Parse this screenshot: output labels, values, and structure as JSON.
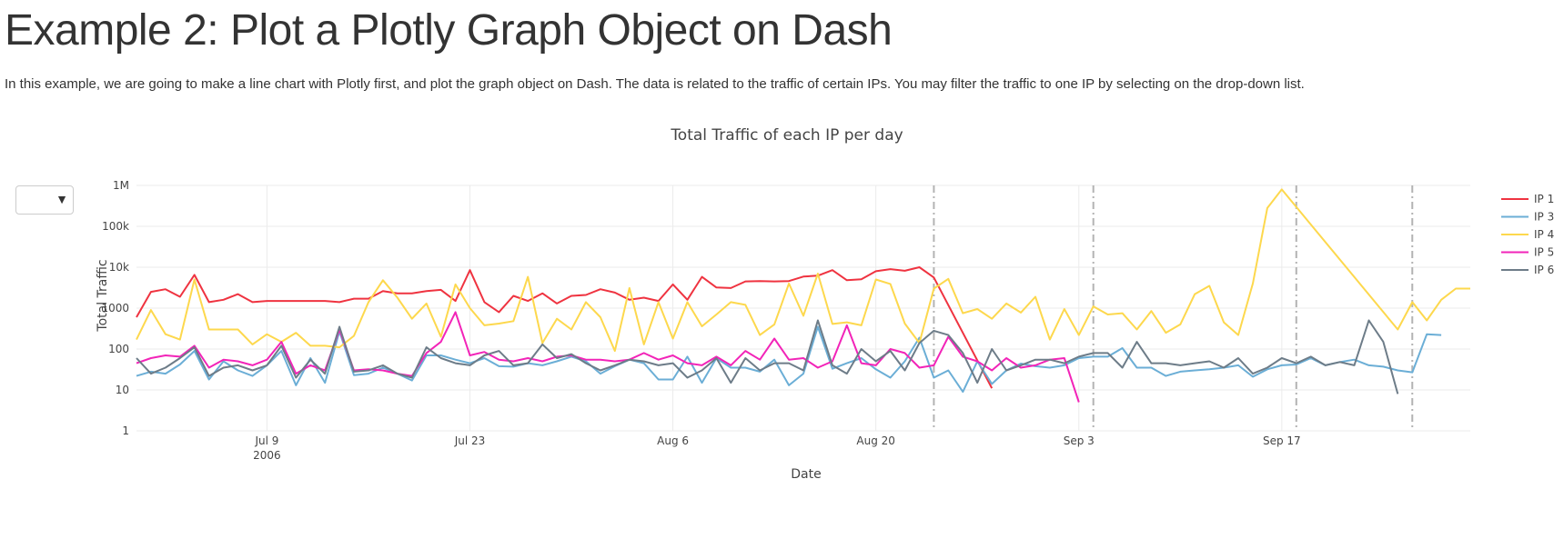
{
  "page": {
    "title": "Example 2: Plot a Plotly Graph Object on Dash",
    "description": "In this example, we are going to make a line chart with Plotly first, and plot the graph object on Dash. The data is related to the traffic of certain IPs. You may filter the traffic to one IP by selecting on the drop-down list."
  },
  "dropdown": {
    "value": "",
    "arrow": "▼"
  },
  "chart_data": {
    "type": "line",
    "title": "Total Traffic of each IP per day",
    "xlabel": "Date",
    "ylabel": "Total Traffic",
    "yscale": "log",
    "ylim": [
      1,
      1000000
    ],
    "xlim": [
      "2006-06-30",
      "2006-09-30"
    ],
    "x_start": "2006-06-30",
    "grid": true,
    "legend_position": "right",
    "x_ticks": [
      {
        "date": "2006-07-09",
        "label": "Jul 9",
        "sub": "2006"
      },
      {
        "date": "2006-07-23",
        "label": "Jul 23",
        "sub": ""
      },
      {
        "date": "2006-08-06",
        "label": "Aug 6",
        "sub": ""
      },
      {
        "date": "2006-08-20",
        "label": "Aug 20",
        "sub": ""
      },
      {
        "date": "2006-09-03",
        "label": "Sep 3",
        "sub": ""
      },
      {
        "date": "2006-09-17",
        "label": "Sep 17",
        "sub": ""
      }
    ],
    "y_ticks": [
      {
        "value": 1,
        "label": "1"
      },
      {
        "value": 10,
        "label": "10"
      },
      {
        "value": 100,
        "label": "100"
      },
      {
        "value": 1000,
        "label": "1000"
      },
      {
        "value": 10000,
        "label": "10k"
      },
      {
        "value": 100000,
        "label": "100k"
      },
      {
        "value": 1000000,
        "label": "1M"
      }
    ],
    "vlines": [
      "2006-08-24",
      "2006-09-04",
      "2006-09-18",
      "2006-09-26"
    ],
    "series": [
      {
        "name": "IP 1",
        "color": "#ef3340",
        "values": [
          600,
          2500,
          2900,
          1900,
          6500,
          1400,
          1600,
          2200,
          1400,
          1500,
          1500,
          1500,
          1500,
          1500,
          1400,
          1700,
          1700,
          2600,
          2300,
          2300,
          2600,
          2800,
          1500,
          8500,
          1400,
          800,
          2000,
          1500,
          2300,
          1300,
          2000,
          2100,
          2900,
          2400,
          1600,
          1800,
          1500,
          3800,
          1600,
          5800,
          3200,
          3100,
          4500,
          4600,
          4500,
          4600,
          5900,
          6200,
          8500,
          4800,
          5100,
          8000,
          9000,
          8200,
          10000,
          5600,
          null,
          null,
          null,
          11,
          null,
          null,
          null,
          null,
          null,
          null,
          null,
          null,
          null,
          null,
          null,
          null,
          null,
          null,
          null,
          null,
          null,
          null,
          null,
          null,
          null,
          null,
          null,
          null,
          null,
          null,
          null,
          null,
          null,
          null,
          null,
          null,
          null
        ]
      },
      {
        "name": "IP 3",
        "color": "#6baed6",
        "values": [
          22,
          28,
          25,
          42,
          90,
          18,
          50,
          30,
          22,
          40,
          90,
          13,
          60,
          15,
          270,
          23,
          25,
          35,
          25,
          17,
          70,
          70,
          55,
          45,
          60,
          38,
          37,
          45,
          40,
          50,
          65,
          50,
          25,
          38,
          55,
          45,
          18,
          18,
          65,
          15,
          60,
          35,
          35,
          28,
          55,
          13,
          25,
          350,
          33,
          45,
          60,
          32,
          20,
          50,
          190,
          20,
          30,
          9,
          50,
          14,
          30,
          44,
          38,
          35,
          40,
          60,
          65,
          65,
          105,
          35,
          35,
          22,
          28,
          30,
          32,
          35,
          40,
          21,
          32,
          40,
          42,
          60,
          40,
          48,
          55,
          40,
          37,
          30,
          27,
          230,
          220,
          null,
          null
        ]
      },
      {
        "name": "IP 4",
        "color": "#fdd84d",
        "values": [
          170,
          900,
          230,
          170,
          5000,
          300,
          300,
          300,
          130,
          230,
          150,
          250,
          120,
          120,
          110,
          210,
          1400,
          4800,
          1800,
          550,
          1300,
          200,
          3800,
          1000,
          380,
          420,
          480,
          5800,
          140,
          550,
          300,
          1400,
          600,
          90,
          3100,
          130,
          1400,
          180,
          1400,
          360,
          700,
          1400,
          1200,
          220,
          400,
          4000,
          650,
          7000,
          410,
          450,
          380,
          5000,
          3900,
          420,
          140,
          3000,
          5200,
          750,
          950,
          550,
          1300,
          780,
          1900,
          170,
          950,
          220,
          1100,
          700,
          750,
          300,
          850,
          250,
          400,
          2200,
          3500,
          450,
          220,
          4000,
          280000,
          800000,
          null,
          null,
          null,
          null,
          null,
          null,
          null,
          300,
          1400,
          500,
          1600,
          3000,
          3000
        ]
      },
      {
        "name": "IP 5",
        "color": "#f224b8",
        "values": [
          45,
          60,
          70,
          65,
          120,
          35,
          55,
          50,
          40,
          55,
          150,
          25,
          40,
          30,
          300,
          30,
          32,
          30,
          25,
          22,
          80,
          150,
          800,
          70,
          85,
          55,
          50,
          60,
          50,
          65,
          70,
          55,
          55,
          50,
          55,
          80,
          55,
          70,
          45,
          40,
          65,
          40,
          90,
          55,
          180,
          55,
          60,
          35,
          50,
          380,
          45,
          40,
          100,
          80,
          35,
          40,
          200,
          65,
          50,
          30,
          60,
          35,
          40,
          55,
          60,
          5,
          null,
          null,
          null,
          null,
          null,
          null,
          null,
          null,
          null,
          null,
          null,
          null,
          null,
          null,
          null,
          null,
          null,
          null,
          null,
          null,
          null,
          null,
          null,
          null,
          null,
          null,
          null
        ]
      },
      {
        "name": "IP 6",
        "color": "#6d7c88",
        "values": [
          60,
          25,
          35,
          60,
          110,
          22,
          35,
          40,
          30,
          40,
          120,
          20,
          55,
          25,
          350,
          28,
          30,
          40,
          25,
          20,
          110,
          60,
          45,
          40,
          70,
          90,
          40,
          45,
          130,
          60,
          75,
          45,
          30,
          40,
          55,
          50,
          40,
          45,
          20,
          30,
          60,
          15,
          60,
          30,
          45,
          45,
          30,
          500,
          40,
          25,
          100,
          50,
          90,
          30,
          140,
          280,
          220,
          80,
          15,
          100,
          30,
          40,
          55,
          55,
          45,
          65,
          80,
          80,
          35,
          150,
          45,
          45,
          40,
          45,
          50,
          35,
          60,
          25,
          35,
          60,
          45,
          65,
          40,
          48,
          40,
          500,
          150,
          8,
          null,
          null,
          null,
          null,
          null
        ]
      }
    ]
  }
}
